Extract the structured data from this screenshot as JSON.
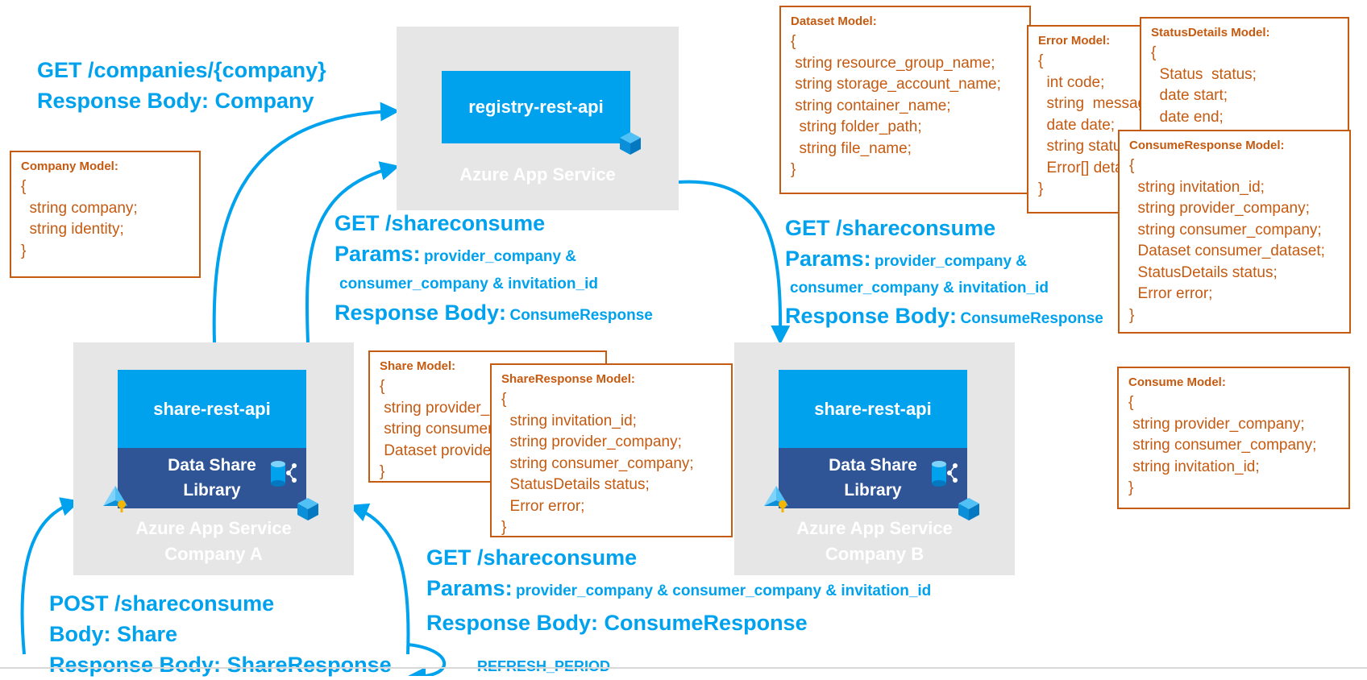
{
  "colors": {
    "api_blue": "#00a2ed",
    "library_navy": "#2f5597",
    "service_gray": "#e6e6e6",
    "model_orange": "#c55a11",
    "label_blue": "#00a2ed"
  },
  "registry": {
    "api_label": "registry-rest-api",
    "service_label": "Azure App Service"
  },
  "company_a": {
    "api_label": "share-rest-api",
    "library_line1": "Data Share",
    "library_line2": "Library",
    "service_line1": "Azure App Service",
    "service_line2": "Company A"
  },
  "company_b": {
    "api_label": "share-rest-api",
    "library_line1": "Data Share",
    "library_line2": "Library",
    "service_line1": "Azure App Service",
    "service_line2": "Company B"
  },
  "labels": {
    "get_company": {
      "line1": "GET /companies/{company}",
      "line2": "Response Body: Company"
    },
    "get_shareconsume_a": {
      "line1": "GET /shareconsume",
      "params_key": "Params:",
      "params_val1": "provider_company &",
      "params_val2": "consumer_company & invitation_id",
      "resp_key": "Response Body:",
      "resp_val": "ConsumeResponse"
    },
    "get_shareconsume_b": {
      "line1": "GET /shareconsume",
      "params_key": "Params:",
      "params_val1": "provider_company &",
      "params_val2": "consumer_company & invitation_id",
      "resp_key": "Response Body:",
      "resp_val": "ConsumeResponse"
    },
    "get_shareconsume_bottom": {
      "line1": "GET /shareconsume",
      "params_key": "Params:",
      "params_val": "provider_company & consumer_company & invitation_id",
      "line3": "Response Body: ConsumeResponse"
    },
    "post_shareconsume": {
      "line1": "POST /shareconsume",
      "line2": "Body: Share",
      "line3": "Response Body: ShareResponse"
    },
    "refresh": "REFRESH_PERIOD"
  },
  "models": {
    "company": {
      "title": "Company Model:",
      "lines": [
        "{",
        "  string company;",
        "  string identity;",
        "}"
      ]
    },
    "dataset": {
      "title": "Dataset Model:",
      "lines": [
        "{",
        " string resource_group_name;",
        " string storage_account_name;",
        " string container_name;",
        "  string folder_path;",
        "  string file_name;",
        "}"
      ]
    },
    "error": {
      "title": "Error Model:",
      "lines": [
        "{",
        "  int code;",
        "  string  message;",
        "  date date;",
        "  string status;",
        "  Error[] details;",
        "}"
      ]
    },
    "status_details": {
      "title": "StatusDetails Model:",
      "lines": [
        "{",
        "  Status  status;",
        "  date start;",
        "  date end;"
      ]
    },
    "consume_response": {
      "title": "ConsumeResponse Model:",
      "lines": [
        "{",
        "  string invitation_id;",
        "  string provider_company;",
        "  string consumer_company;",
        "  Dataset consumer_dataset;",
        "  StatusDetails status;",
        "  Error error;",
        "}"
      ]
    },
    "share": {
      "title": "Share Model:",
      "lines": [
        "{",
        " string provider_company;",
        " string consumer_company;",
        " Dataset provider_dataset;",
        "}"
      ]
    },
    "share_response": {
      "title": "ShareResponse Model:",
      "lines": [
        "{",
        "  string invitation_id;",
        "  string provider_company;",
        "  string consumer_company;",
        "  StatusDetails status;",
        "  Error error;",
        "}"
      ]
    },
    "consume": {
      "title": "Consume Model:",
      "lines": [
        "{",
        " string provider_company;",
        " string consumer_company;",
        " string invitation_id;",
        "}"
      ]
    }
  }
}
